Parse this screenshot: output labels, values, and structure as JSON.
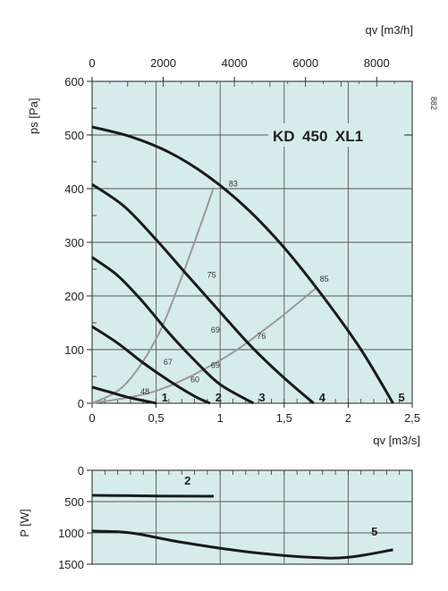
{
  "code": "882",
  "chart_data": [
    {
      "type": "line",
      "title": "KD 450 XL1",
      "xlabel": "qv [m3/s]",
      "ylabel": "ps [Pa]",
      "x2label": "qv [m3/h]",
      "xlim": [
        0,
        2.5
      ],
      "ylim": [
        0,
        600
      ],
      "x2lim": [
        0,
        9000
      ],
      "x_ticks": [
        0,
        0.5,
        1,
        1.5,
        2,
        2.5
      ],
      "x_tick_labels": [
        "0",
        "0,5",
        "1",
        "1,5",
        "2",
        "2,5"
      ],
      "x2_ticks": [
        0,
        2000,
        4000,
        6000,
        8000
      ],
      "x2_tick_labels": [
        "0",
        "2000",
        "4000",
        "6000",
        "8000"
      ],
      "y_ticks": [
        0,
        100,
        200,
        300,
        400,
        500,
        600
      ],
      "y_tick_labels": [
        "0",
        "100",
        "200",
        "300",
        "400",
        "500",
        "600"
      ],
      "grid": true,
      "background": "#d6ecea",
      "series": [
        {
          "name": "1",
          "points": [
            [
              0,
              30
            ],
            [
              0.15,
              20
            ],
            [
              0.3,
              10
            ],
            [
              0.5,
              0
            ]
          ]
        },
        {
          "name": "2",
          "points": [
            [
              0,
              143
            ],
            [
              0.2,
              112
            ],
            [
              0.4,
              75
            ],
            [
              0.6,
              42
            ],
            [
              0.8,
              13
            ],
            [
              0.92,
              0
            ]
          ]
        },
        {
          "name": "3",
          "points": [
            [
              0,
              272
            ],
            [
              0.2,
              238
            ],
            [
              0.4,
              188
            ],
            [
              0.6,
              131
            ],
            [
              0.8,
              80
            ],
            [
              1.0,
              35
            ],
            [
              1.26,
              0
            ]
          ]
        },
        {
          "name": "4",
          "points": [
            [
              0,
              408
            ],
            [
              0.25,
              367
            ],
            [
              0.5,
              305
            ],
            [
              0.75,
              237
            ],
            [
              1.0,
              170
            ],
            [
              1.25,
              104
            ],
            [
              1.5,
              47
            ],
            [
              1.73,
              0
            ]
          ]
        },
        {
          "name": "5",
          "points": [
            [
              0,
              515
            ],
            [
              0.3,
              497
            ],
            [
              0.6,
              468
            ],
            [
              0.9,
              424
            ],
            [
              1.2,
              365
            ],
            [
              1.5,
              290
            ],
            [
              1.8,
              200
            ],
            [
              2.1,
              100
            ],
            [
              2.35,
              0
            ]
          ]
        }
      ],
      "efficiency_lines": [
        {
          "label": "83",
          "points": [
            [
              0,
              0
            ],
            [
              0.25,
              33
            ],
            [
              0.5,
              120
            ],
            [
              0.7,
              235
            ],
            [
              0.95,
              402
            ]
          ]
        },
        {
          "label": "85",
          "points": [
            [
              0,
              0
            ],
            [
              0.5,
              23
            ],
            [
              1.0,
              80
            ],
            [
              1.4,
              147
            ],
            [
              1.75,
              215
            ]
          ]
        }
      ],
      "annotations": [
        {
          "text": "48",
          "x": 0.35,
          "y": 22
        },
        {
          "text": "67",
          "x": 0.53,
          "y": 77
        },
        {
          "text": "60",
          "x": 0.74,
          "y": 44
        },
        {
          "text": "69",
          "x": 0.9,
          "y": 137
        },
        {
          "text": "69",
          "x": 0.9,
          "y": 71
        },
        {
          "text": "75",
          "x": 0.87,
          "y": 239
        },
        {
          "text": "76",
          "x": 1.26,
          "y": 125
        },
        {
          "text": "83",
          "x": 1.04,
          "y": 409
        },
        {
          "text": "85",
          "x": 1.75,
          "y": 232
        }
      ]
    },
    {
      "type": "line",
      "xlabel": "",
      "ylabel": "P [W]",
      "xlim": [
        0,
        2.5
      ],
      "ylim": [
        1500,
        0
      ],
      "y_ticks": [
        0,
        500,
        1000,
        1500
      ],
      "y_tick_labels": [
        "0",
        "500",
        "1000",
        "1500"
      ],
      "grid": true,
      "series": [
        {
          "name": "2",
          "points": [
            [
              0,
              400
            ],
            [
              0.5,
              410
            ],
            [
              0.95,
              415
            ]
          ]
        },
        {
          "name": "5",
          "points": [
            [
              0,
              970
            ],
            [
              0.3,
              1000
            ],
            [
              0.7,
              1150
            ],
            [
              1.2,
              1300
            ],
            [
              1.7,
              1390
            ],
            [
              2.0,
              1390
            ],
            [
              2.35,
              1270
            ]
          ]
        }
      ]
    }
  ]
}
